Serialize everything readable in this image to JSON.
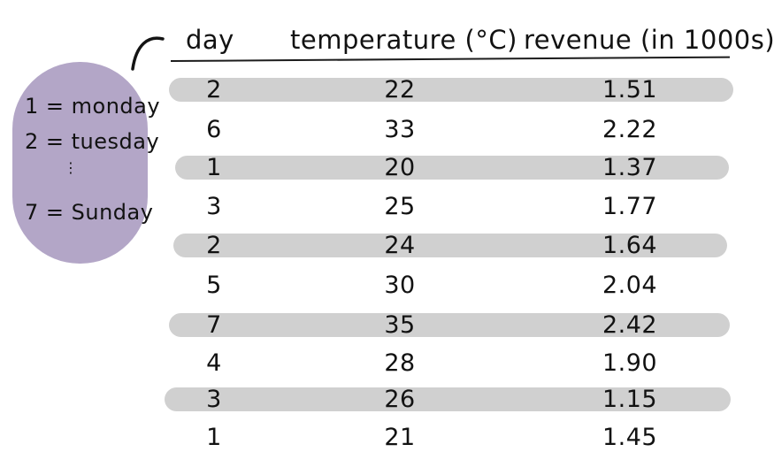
{
  "legend": {
    "line1": "1 = monday",
    "line2": "2 = tuesday",
    "ellipsis": "⋮",
    "line3": "7 = Sunday"
  },
  "table": {
    "headers": {
      "day": "day",
      "temperature": "temperature (°C)",
      "revenue": "revenue (in 1000s)"
    },
    "rows": [
      {
        "day": "2",
        "temperature": "22",
        "revenue": "1.51",
        "shaded": true
      },
      {
        "day": "6",
        "temperature": "33",
        "revenue": "2.22",
        "shaded": false
      },
      {
        "day": "1",
        "temperature": "20",
        "revenue": "1.37",
        "shaded": true
      },
      {
        "day": "3",
        "temperature": "25",
        "revenue": "1.77",
        "shaded": false
      },
      {
        "day": "2",
        "temperature": "24",
        "revenue": "1.64",
        "shaded": true
      },
      {
        "day": "5",
        "temperature": "30",
        "revenue": "2.04",
        "shaded": false
      },
      {
        "day": "7",
        "temperature": "35",
        "revenue": "2.42",
        "shaded": true
      },
      {
        "day": "4",
        "temperature": "28",
        "revenue": "1.90",
        "shaded": false
      },
      {
        "day": "3",
        "temperature": "26",
        "revenue": "1.15",
        "shaded": true
      },
      {
        "day": "1",
        "temperature": "21",
        "revenue": "1.45",
        "shaded": false
      }
    ]
  },
  "colors": {
    "legend_fill": "#b3a6c7",
    "stripe_fill": "#d0d0d0",
    "ink": "#141414"
  }
}
